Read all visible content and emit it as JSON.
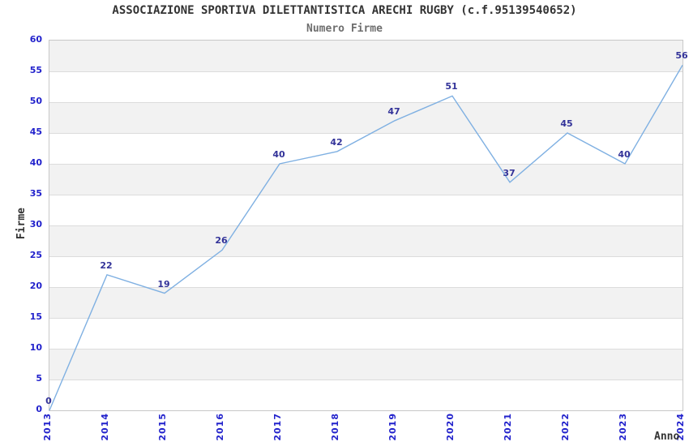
{
  "chart_data": {
    "type": "line",
    "title": "ASSOCIAZIONE SPORTIVA DILETTANTISTICA ARECHI RUGBY (c.f.95139540652)",
    "subtitle": "Numero Firme",
    "xlabel": "Anno",
    "ylabel": "Firme",
    "categories": [
      "2013",
      "2014",
      "2015",
      "2016",
      "2017",
      "2018",
      "2019",
      "2020",
      "2021",
      "2022",
      "2023",
      "2024"
    ],
    "values": [
      0,
      22,
      19,
      26,
      40,
      42,
      47,
      51,
      37,
      45,
      40,
      56
    ],
    "ylim": [
      0,
      60
    ],
    "ytick_step": 5,
    "yticks": [
      0,
      5,
      10,
      15,
      20,
      25,
      30,
      35,
      40,
      45,
      50,
      55,
      60
    ],
    "grid": true,
    "legend_position": "none",
    "colors": {
      "line": "#7FB0E2",
      "tick_labels": "#2222CC",
      "data_labels": "#333399",
      "band_gray": "#F2F2F2",
      "band_white": "#FFFFFF",
      "gridline": "#DCDCDC",
      "title": "#333333",
      "subtitle": "#6E6E6E"
    }
  }
}
